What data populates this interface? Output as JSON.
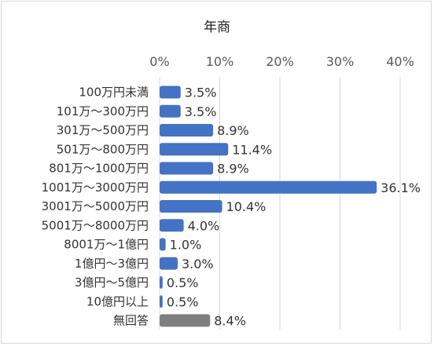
{
  "chart_data": {
    "type": "bar",
    "orientation": "horizontal",
    "title": "年商",
    "xlabel": "",
    "ylabel": "",
    "xlim": [
      0,
      40
    ],
    "x_ticks": [
      "0%",
      "10%",
      "20%",
      "30%",
      "40%"
    ],
    "tick_values": [
      0,
      10,
      20,
      30,
      40
    ],
    "grid": true,
    "legend": "none",
    "categories": [
      "100万円未満",
      "101万～300万円",
      "301万～500万円",
      "501万～800万円",
      "801万～1000万円",
      "1001万～3000万円",
      "3001万～5000万円",
      "5001万～8000万円",
      "8001万～1億円",
      "1億円～3億円",
      "3億円～5億円",
      "10億円以上",
      "無回答"
    ],
    "values": [
      3.5,
      3.5,
      8.9,
      11.4,
      8.9,
      36.1,
      10.4,
      4.0,
      1.0,
      3.0,
      0.5,
      0.5,
      8.4
    ],
    "data_labels": [
      "3.5%",
      "3.5%",
      "8.9%",
      "11.4%",
      "8.9%",
      "36.1%",
      "10.4%",
      "4.0%",
      "1.0%",
      "3.0%",
      "0.5%",
      "0.5%",
      "8.4%"
    ],
    "colors": {
      "bar": "#4472c4",
      "bar_no_answer": "#7f7f7f",
      "grid": "#d9d9d9",
      "frame": "#d9d9d9"
    }
  }
}
